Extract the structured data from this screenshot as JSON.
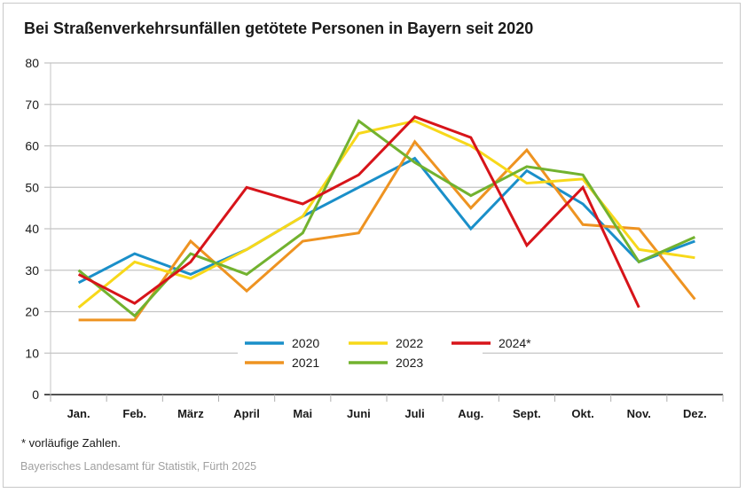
{
  "chart_data": {
    "type": "line",
    "title": "Bei Straßenverkehrsunfällen getötete Personen in Bayern seit 2020",
    "xlabel": "",
    "ylabel": "",
    "ylim": [
      0,
      80
    ],
    "yticks": [
      0,
      10,
      20,
      30,
      40,
      50,
      60,
      70,
      80
    ],
    "grid": true,
    "legend_position": "bottom-center-inside",
    "categories": [
      "Jan.",
      "Feb.",
      "März",
      "April",
      "Mai",
      "Juni",
      "Juli",
      "Aug.",
      "Sept.",
      "Okt.",
      "Nov.",
      "Dez."
    ],
    "series": [
      {
        "name": "2020",
        "color": "#1a8fc9",
        "values": [
          27,
          34,
          29,
          35,
          43,
          50,
          57,
          40,
          54,
          46,
          32,
          37
        ]
      },
      {
        "name": "2021",
        "color": "#ee9321",
        "values": [
          18,
          18,
          37,
          25,
          37,
          39,
          61,
          45,
          59,
          41,
          40,
          23
        ]
      },
      {
        "name": "2022",
        "color": "#f7d81a",
        "values": [
          21,
          32,
          28,
          35,
          43,
          63,
          66,
          60,
          51,
          52,
          35,
          33
        ]
      },
      {
        "name": "2023",
        "color": "#72b22f",
        "values": [
          30,
          19,
          34,
          29,
          39,
          66,
          56,
          48,
          55,
          53,
          32,
          38
        ]
      },
      {
        "name": "2024*",
        "color": "#d7141a",
        "values": [
          29,
          22,
          32,
          50,
          46,
          53,
          67,
          62,
          36,
          50,
          21,
          null
        ]
      }
    ],
    "legend_layout": [
      [
        "2020",
        "2022",
        "2024*"
      ],
      [
        "2021",
        "2023"
      ]
    ]
  },
  "footnote": "* vorläufige Zahlen.",
  "source": "Bayerisches Landesamt für Statistik, Fürth 2025"
}
